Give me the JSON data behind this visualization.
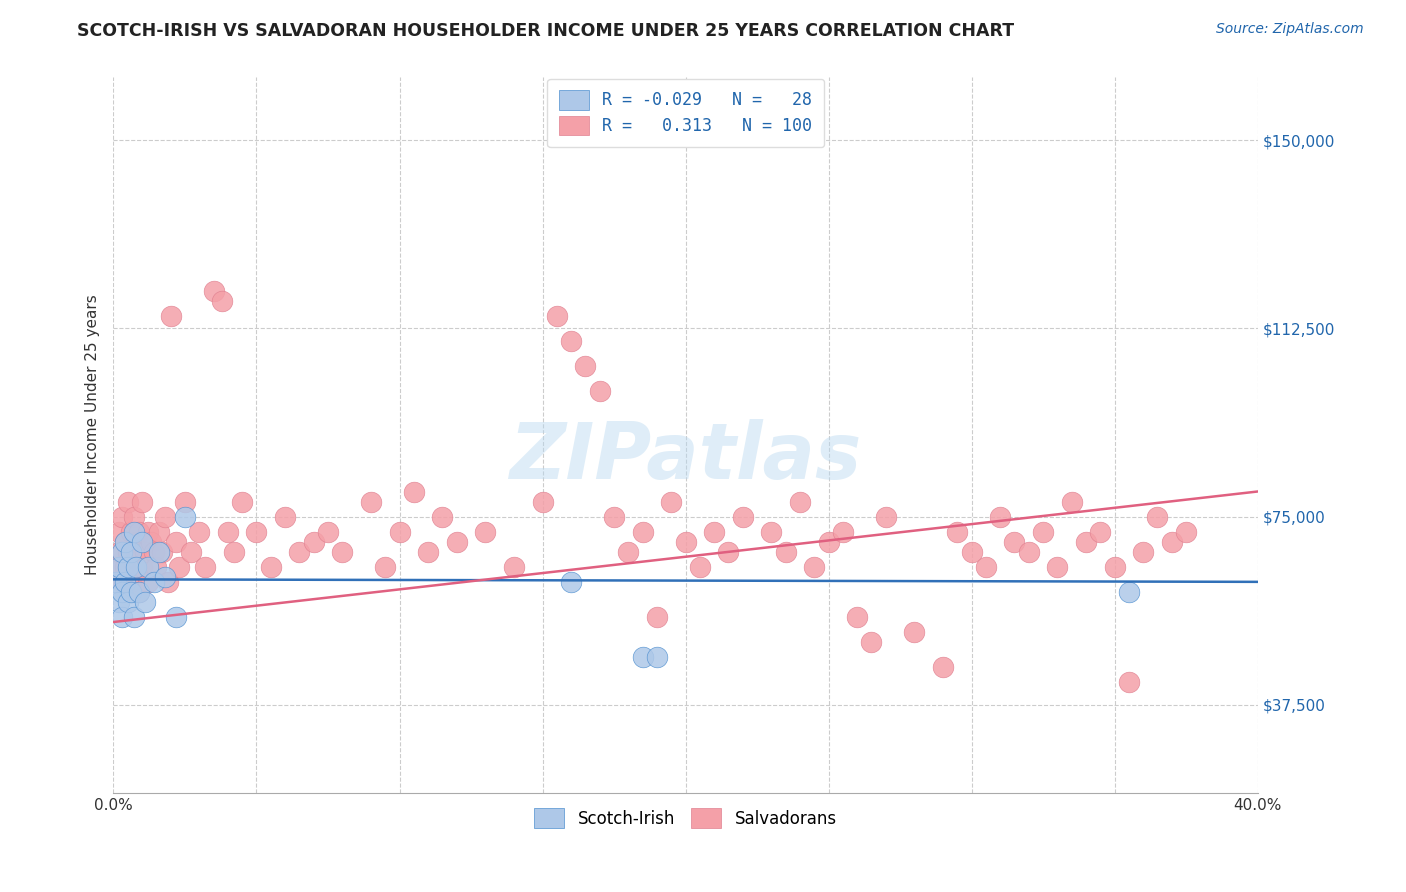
{
  "title": "SCOTCH-IRISH VS SALVADORAN HOUSEHOLDER INCOME UNDER 25 YEARS CORRELATION CHART",
  "source": "Source: ZipAtlas.com",
  "ylabel": "Householder Income Under 25 years",
  "xlim": [
    0.0,
    0.4
  ],
  "ylim": [
    20000,
    162500
  ],
  "yticks": [
    37500,
    75000,
    112500,
    150000
  ],
  "ytick_labels": [
    "$37,500",
    "$75,000",
    "$112,500",
    "$150,000"
  ],
  "xticks": [
    0.0,
    0.05,
    0.1,
    0.15,
    0.2,
    0.25,
    0.3,
    0.35,
    0.4
  ],
  "xtick_labels_show": [
    "0.0%",
    "",
    "",
    "",
    "",
    "",
    "",
    "",
    "40.0%"
  ],
  "grid_color": "#cccccc",
  "blue_color": "#aec8e8",
  "pink_color": "#f4a0a8",
  "blue_line_color": "#3070b8",
  "pink_line_color": "#e06080",
  "blue_edge_color": "#5090d0",
  "pink_edge_color": "#e08090",
  "legend_R_blue": "-0.029",
  "legend_N_blue": "28",
  "legend_R_pink": "0.313",
  "legend_N_pink": "100",
  "scotch_irish_x": [
    0.001,
    0.002,
    0.002,
    0.003,
    0.003,
    0.003,
    0.004,
    0.004,
    0.005,
    0.005,
    0.006,
    0.006,
    0.007,
    0.007,
    0.008,
    0.009,
    0.01,
    0.011,
    0.012,
    0.014,
    0.016,
    0.018,
    0.022,
    0.025,
    0.16,
    0.185,
    0.19,
    0.355
  ],
  "scotch_irish_y": [
    62000,
    58000,
    65000,
    60000,
    68000,
    55000,
    62000,
    70000,
    58000,
    65000,
    60000,
    68000,
    55000,
    72000,
    65000,
    60000,
    70000,
    58000,
    65000,
    62000,
    68000,
    63000,
    55000,
    75000,
    62000,
    47000,
    47000,
    60000
  ],
  "salvadoran_x": [
    0.001,
    0.002,
    0.002,
    0.003,
    0.003,
    0.004,
    0.004,
    0.005,
    0.005,
    0.006,
    0.006,
    0.007,
    0.007,
    0.008,
    0.008,
    0.009,
    0.009,
    0.01,
    0.01,
    0.011,
    0.012,
    0.012,
    0.013,
    0.014,
    0.015,
    0.016,
    0.017,
    0.018,
    0.019,
    0.02,
    0.022,
    0.023,
    0.025,
    0.027,
    0.03,
    0.032,
    0.035,
    0.038,
    0.04,
    0.042,
    0.045,
    0.05,
    0.055,
    0.06,
    0.065,
    0.07,
    0.075,
    0.08,
    0.09,
    0.095,
    0.1,
    0.105,
    0.11,
    0.115,
    0.12,
    0.13,
    0.14,
    0.15,
    0.155,
    0.16,
    0.165,
    0.17,
    0.175,
    0.18,
    0.185,
    0.19,
    0.195,
    0.2,
    0.205,
    0.21,
    0.215,
    0.22,
    0.23,
    0.235,
    0.24,
    0.245,
    0.25,
    0.255,
    0.26,
    0.265,
    0.27,
    0.28,
    0.29,
    0.295,
    0.3,
    0.305,
    0.31,
    0.315,
    0.32,
    0.325,
    0.33,
    0.335,
    0.34,
    0.345,
    0.35,
    0.355,
    0.36,
    0.365,
    0.37,
    0.375
  ],
  "salvadoran_y": [
    65000,
    72000,
    68000,
    75000,
    62000,
    70000,
    65000,
    78000,
    68000,
    72000,
    62000,
    75000,
    65000,
    70000,
    68000,
    72000,
    60000,
    78000,
    65000,
    68000,
    72000,
    62000,
    70000,
    68000,
    65000,
    72000,
    68000,
    75000,
    62000,
    115000,
    70000,
    65000,
    78000,
    68000,
    72000,
    65000,
    120000,
    118000,
    72000,
    68000,
    78000,
    72000,
    65000,
    75000,
    68000,
    70000,
    72000,
    68000,
    78000,
    65000,
    72000,
    80000,
    68000,
    75000,
    70000,
    72000,
    65000,
    78000,
    115000,
    110000,
    105000,
    100000,
    75000,
    68000,
    72000,
    55000,
    78000,
    70000,
    65000,
    72000,
    68000,
    75000,
    72000,
    68000,
    78000,
    65000,
    70000,
    72000,
    55000,
    50000,
    75000,
    52000,
    45000,
    72000,
    68000,
    65000,
    75000,
    70000,
    68000,
    72000,
    65000,
    78000,
    70000,
    72000,
    65000,
    42000,
    68000,
    75000,
    70000,
    72000
  ]
}
